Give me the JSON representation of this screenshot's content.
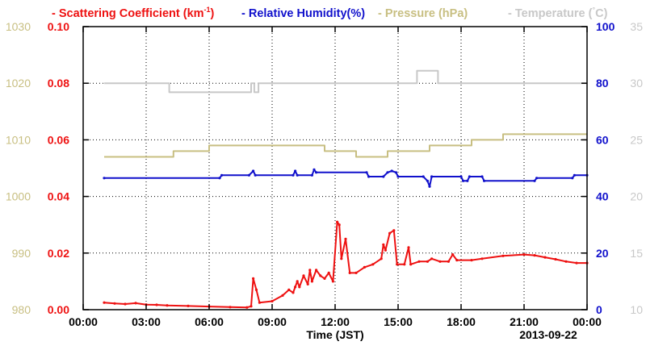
{
  "chart_data": {
    "type": "line",
    "legend": [
      {
        "label": "- Scattering Coefficient (km",
        "sup": "-1",
        "close": ")",
        "color": "#ee1111"
      },
      {
        "label": "- Relative Humidity(%)",
        "color": "#1111cc"
      },
      {
        "label": "- Pressure (hPa)",
        "color": "#c8bf82"
      },
      {
        "label": "- Temperature (",
        "deg": "°",
        "close": "C)",
        "color": "#c8c8c8"
      }
    ],
    "xlabel": "Time (JST)",
    "date_label": "2013-09-22",
    "x_ticks": [
      "00:00",
      "03:00",
      "06:00",
      "09:00",
      "12:00",
      "15:00",
      "18:00",
      "21:00",
      "00:00"
    ],
    "xlim": [
      0,
      24
    ],
    "axes": {
      "pressure": {
        "ticks": [
          "980",
          "990",
          "1000",
          "1010",
          "1020",
          "1030"
        ],
        "lim": [
          980,
          1030
        ],
        "color": "#c8bf82"
      },
      "scattering": {
        "ticks": [
          "0.00",
          "0.02",
          "0.04",
          "0.06",
          "0.08",
          "0.10"
        ],
        "lim": [
          0,
          0.1
        ],
        "color": "#ee1111"
      },
      "humidity": {
        "ticks": [
          "0",
          "20",
          "40",
          "60",
          "80",
          "100"
        ],
        "lim": [
          0,
          100
        ],
        "color": "#1111cc"
      },
      "temperature": {
        "ticks": [
          "10",
          "15",
          "20",
          "25",
          "30",
          "35"
        ],
        "lim": [
          10,
          35
        ],
        "color": "#c8c8c8"
      }
    },
    "grid": true,
    "series": [
      {
        "key": "temperature",
        "axis": "temperature",
        "color": "#c8c8c8",
        "step": true,
        "points": [
          [
            1.0,
            30
          ],
          [
            4.1,
            30
          ],
          [
            4.1,
            29.2
          ],
          [
            8.0,
            29.2
          ],
          [
            8.0,
            30
          ],
          [
            8.15,
            30
          ],
          [
            8.15,
            29.2
          ],
          [
            8.35,
            29.2
          ],
          [
            8.35,
            30
          ],
          [
            15.9,
            30
          ],
          [
            15.9,
            31.1
          ],
          [
            16.9,
            31.1
          ],
          [
            16.9,
            30
          ],
          [
            24,
            30
          ]
        ]
      },
      {
        "key": "pressure",
        "axis": "pressure",
        "color": "#c8bf82",
        "step": true,
        "points": [
          [
            1.0,
            1007
          ],
          [
            4.3,
            1007
          ],
          [
            4.3,
            1008
          ],
          [
            6.0,
            1008
          ],
          [
            6.0,
            1009
          ],
          [
            11.5,
            1009
          ],
          [
            11.5,
            1008
          ],
          [
            13.0,
            1008
          ],
          [
            13.0,
            1007
          ],
          [
            14.5,
            1007
          ],
          [
            14.5,
            1008
          ],
          [
            16.5,
            1008
          ],
          [
            16.5,
            1009
          ],
          [
            18.5,
            1009
          ],
          [
            18.5,
            1010
          ],
          [
            20.0,
            1010
          ],
          [
            20.0,
            1011
          ],
          [
            24,
            1011
          ]
        ]
      },
      {
        "key": "humidity",
        "axis": "humidity",
        "color": "#1111cc",
        "step": false,
        "points": [
          [
            1.0,
            46.5
          ],
          [
            6.5,
            46.5
          ],
          [
            6.6,
            47.5
          ],
          [
            7.9,
            47.5
          ],
          [
            8.1,
            49
          ],
          [
            8.2,
            47.5
          ],
          [
            10.0,
            47.5
          ],
          [
            10.1,
            49
          ],
          [
            10.2,
            47.5
          ],
          [
            10.9,
            47.5
          ],
          [
            11.0,
            49.5
          ],
          [
            11.1,
            48.5
          ],
          [
            13.5,
            48.5
          ],
          [
            13.6,
            47
          ],
          [
            14.3,
            47
          ],
          [
            14.5,
            48.5
          ],
          [
            14.7,
            49
          ],
          [
            14.9,
            48.5
          ],
          [
            15.0,
            47
          ],
          [
            16.2,
            47
          ],
          [
            16.4,
            45.5
          ],
          [
            16.5,
            43.5
          ],
          [
            16.6,
            47
          ],
          [
            18.0,
            47
          ],
          [
            18.1,
            45.5
          ],
          [
            18.3,
            45.5
          ],
          [
            18.4,
            47
          ],
          [
            19.0,
            47
          ],
          [
            19.1,
            45.5
          ],
          [
            21.5,
            45.5
          ],
          [
            21.6,
            46.5
          ],
          [
            23.3,
            46.5
          ],
          [
            23.4,
            47.5
          ],
          [
            24,
            47.5
          ]
        ]
      },
      {
        "key": "scattering",
        "axis": "scattering",
        "color": "#ee1111",
        "step": false,
        "points": [
          [
            1.0,
            0.0025
          ],
          [
            1.5,
            0.0022
          ],
          [
            2.0,
            0.002
          ],
          [
            2.5,
            0.0023
          ],
          [
            3.0,
            0.0018
          ],
          [
            3.5,
            0.0017
          ],
          [
            4.0,
            0.0015
          ],
          [
            5.0,
            0.0013
          ],
          [
            6.0,
            0.0011
          ],
          [
            7.0,
            0.0009
          ],
          [
            7.8,
            0.0008
          ],
          [
            8.0,
            0.0012
          ],
          [
            8.1,
            0.011
          ],
          [
            8.25,
            0.007
          ],
          [
            8.4,
            0.0025
          ],
          [
            9.0,
            0.003
          ],
          [
            9.5,
            0.005
          ],
          [
            9.8,
            0.007
          ],
          [
            10.0,
            0.006
          ],
          [
            10.1,
            0.008
          ],
          [
            10.2,
            0.01
          ],
          [
            10.3,
            0.008
          ],
          [
            10.5,
            0.012
          ],
          [
            10.7,
            0.009
          ],
          [
            10.8,
            0.014
          ],
          [
            10.9,
            0.01
          ],
          [
            11.1,
            0.014
          ],
          [
            11.3,
            0.012
          ],
          [
            11.5,
            0.011
          ],
          [
            11.7,
            0.013
          ],
          [
            11.9,
            0.01
          ],
          [
            12.1,
            0.031
          ],
          [
            12.2,
            0.03
          ],
          [
            12.3,
            0.018
          ],
          [
            12.5,
            0.025
          ],
          [
            12.7,
            0.013
          ],
          [
            13.0,
            0.013
          ],
          [
            13.4,
            0.015
          ],
          [
            13.8,
            0.016
          ],
          [
            14.2,
            0.018
          ],
          [
            14.3,
            0.023
          ],
          [
            14.4,
            0.021
          ],
          [
            14.6,
            0.027
          ],
          [
            14.8,
            0.028
          ],
          [
            14.95,
            0.016
          ],
          [
            15.3,
            0.016
          ],
          [
            15.5,
            0.022
          ],
          [
            15.6,
            0.016
          ],
          [
            16.0,
            0.017
          ],
          [
            16.4,
            0.017
          ],
          [
            16.6,
            0.018
          ],
          [
            17.0,
            0.017
          ],
          [
            17.4,
            0.017
          ],
          [
            17.6,
            0.0195
          ],
          [
            17.8,
            0.0175
          ],
          [
            18.5,
            0.0175
          ],
          [
            19.0,
            0.018
          ],
          [
            20.0,
            0.019
          ],
          [
            21.0,
            0.0195
          ],
          [
            21.5,
            0.0192
          ],
          [
            22.0,
            0.0185
          ],
          [
            22.5,
            0.0178
          ],
          [
            23.0,
            0.017
          ],
          [
            23.5,
            0.0165
          ],
          [
            24,
            0.0165
          ]
        ]
      }
    ]
  }
}
